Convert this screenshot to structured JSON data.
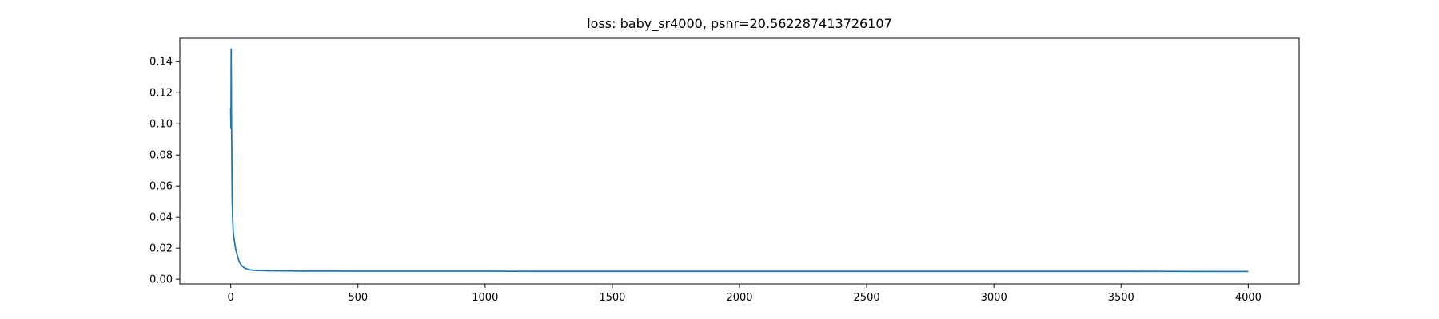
{
  "chart_data": {
    "type": "line",
    "title": "loss: baby_sr4000, psnr=20.562287413726107",
    "xlabel": "",
    "ylabel": "",
    "xlim": [
      -200,
      4200
    ],
    "ylim": [
      -0.003,
      0.155
    ],
    "grid": false,
    "x_ticks": [
      0,
      500,
      1000,
      1500,
      2000,
      2500,
      3000,
      3500,
      4000
    ],
    "x_tick_labels": [
      "0",
      "500",
      "1000",
      "1500",
      "2000",
      "2500",
      "3000",
      "3500",
      "4000"
    ],
    "y_ticks": [
      0.0,
      0.02,
      0.04,
      0.06,
      0.08,
      0.1,
      0.12,
      0.14
    ],
    "y_tick_labels": [
      "0.00",
      "0.02",
      "0.04",
      "0.06",
      "0.08",
      "0.10",
      "0.12",
      "0.14"
    ],
    "series": [
      {
        "color": "#1f77b4",
        "x": [
          0,
          1,
          2,
          3,
          4,
          5,
          6,
          8,
          10,
          15,
          20,
          25,
          30,
          35,
          40,
          45,
          50,
          55,
          60,
          70,
          80,
          90,
          100,
          120,
          150,
          200,
          300,
          400,
          500,
          600,
          800,
          1000,
          1200,
          1500,
          2000,
          2500,
          3000,
          3500,
          4000
        ],
        "y": [
          0.11,
          0.097,
          0.148,
          0.105,
          0.09,
          0.065,
          0.05,
          0.038,
          0.03,
          0.024,
          0.019,
          0.016,
          0.013,
          0.011,
          0.0095,
          0.0085,
          0.0078,
          0.0072,
          0.0068,
          0.0063,
          0.006,
          0.0058,
          0.0057,
          0.0056,
          0.0055,
          0.0054,
          0.0053,
          0.0053,
          0.0052,
          0.0052,
          0.0052,
          0.0052,
          0.0051,
          0.0051,
          0.0051,
          0.0051,
          0.0051,
          0.0051,
          0.005
        ]
      }
    ]
  }
}
